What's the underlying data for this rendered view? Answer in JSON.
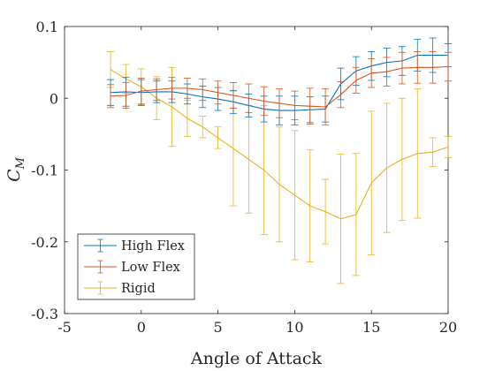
{
  "chart_data": {
    "type": "line",
    "xlabel": "Angle of Attack",
    "ylabel_base": "C",
    "ylabel_sub": "M",
    "xlim": [
      -5,
      20
    ],
    "ylim": [
      -0.3,
      0.1
    ],
    "xticks": [
      -5,
      0,
      5,
      10,
      15,
      20
    ],
    "xtick_labels": [
      "-5",
      "0",
      "5",
      "10",
      "15",
      "20"
    ],
    "yticks": [
      -0.3,
      -0.2,
      -0.1,
      0,
      0.1
    ],
    "ytick_labels": [
      "-0.3",
      "-0.2",
      "-0.1",
      "0",
      "0.1"
    ],
    "grid": false,
    "legend_position": "bottom-left",
    "x": [
      -2,
      -1,
      0,
      1,
      2,
      3,
      4,
      5,
      6,
      7,
      8,
      9,
      10,
      11,
      12,
      13,
      14,
      15,
      16,
      17,
      18,
      19,
      20
    ],
    "series": [
      {
        "name": "High Flex",
        "color": "#0072BD",
        "values": [
          0.008,
          0.009,
          0.008,
          0.009,
          0.009,
          0.006,
          0.002,
          -0.001,
          -0.005,
          -0.01,
          -0.015,
          -0.017,
          -0.017,
          -0.016,
          -0.015,
          0.02,
          0.038,
          0.045,
          0.05,
          0.052,
          0.06,
          0.06,
          0.06
        ],
        "errors": [
          0.018,
          0.02,
          0.018,
          0.015,
          0.015,
          0.014,
          0.015,
          0.016,
          0.016,
          0.016,
          0.018,
          0.02,
          0.02,
          0.018,
          0.018,
          0.022,
          0.02,
          0.02,
          0.02,
          0.02,
          0.022,
          0.024,
          0.016
        ]
      },
      {
        "name": "Low Flex",
        "color": "#D95319",
        "values": [
          0.003,
          0.004,
          0.01,
          0.012,
          0.014,
          0.014,
          0.012,
          0.008,
          0.004,
          0.0,
          -0.004,
          -0.007,
          -0.01,
          -0.011,
          -0.012,
          0.005,
          0.025,
          0.035,
          0.037,
          0.042,
          0.043,
          0.043,
          0.044
        ],
        "errors": [
          0.016,
          0.018,
          0.018,
          0.015,
          0.015,
          0.014,
          0.015,
          0.016,
          0.018,
          0.02,
          0.02,
          0.02,
          0.02,
          0.025,
          0.025,
          0.018,
          0.018,
          0.02,
          0.02,
          0.022,
          0.022,
          0.022,
          0.02
        ]
      },
      {
        "name": "Rigid",
        "color": "#EDB120",
        "values": [
          0.04,
          0.027,
          0.016,
          0.0,
          -0.012,
          -0.028,
          -0.04,
          -0.055,
          -0.07,
          -0.085,
          -0.1,
          -0.12,
          -0.135,
          -0.15,
          -0.158,
          -0.168,
          -0.162,
          -0.118,
          -0.097,
          -0.085,
          -0.077,
          -0.075,
          -0.068
        ],
        "errors": [
          0.025,
          0.02,
          0.025,
          0.03,
          0.055,
          0.025,
          0.015,
          0.015,
          0.08,
          0.075,
          0.09,
          0.08,
          0.09,
          0.078,
          0.045,
          0.09,
          0.085,
          0.1,
          0.09,
          0.085,
          0.09,
          0.02,
          0.015
        ]
      }
    ]
  }
}
